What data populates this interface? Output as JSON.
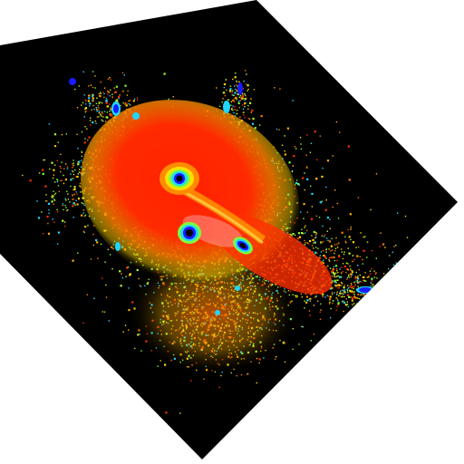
{
  "image": {
    "kind": "false-color astronomical image",
    "description_visible_text": "",
    "palette": {
      "background": "#000000",
      "page": "#ffffff",
      "hot": "#ff1a00",
      "warm": "#ff7a00",
      "mid": "#ffd800",
      "cool": "#7cff3a",
      "cyan": "#1fd6ff",
      "core": "#1a1aff",
      "highlight": "#ffe0f0"
    },
    "features": [
      "rotated-square-frame",
      "central-bright-core",
      "secondary-core",
      "elongated-knot",
      "diffuse-halo",
      "noise-speckles",
      "radial-streaks"
    ]
  }
}
